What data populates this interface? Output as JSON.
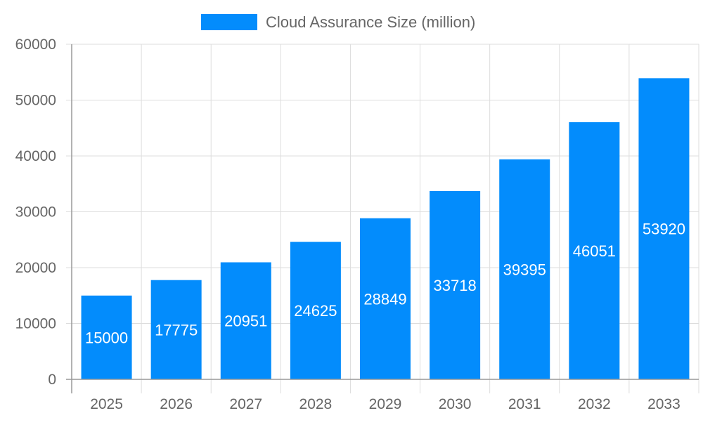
{
  "chart_data": {
    "type": "bar",
    "title": "",
    "xlabel": "",
    "ylabel": "",
    "categories": [
      "2025",
      "2026",
      "2027",
      "2028",
      "2029",
      "2030",
      "2031",
      "2032",
      "2033"
    ],
    "series": [
      {
        "name": "Cloud Assurance Size (million)",
        "values": [
          15000,
          17775,
          20951,
          24625,
          28849,
          33718,
          39395,
          46051,
          53920
        ],
        "color": "#038cfc"
      }
    ],
    "ylim": [
      0,
      60000
    ],
    "yticks": [
      0,
      10000,
      20000,
      30000,
      40000,
      50000,
      60000
    ],
    "grid": true,
    "legend": "top",
    "data_labels": "center"
  }
}
